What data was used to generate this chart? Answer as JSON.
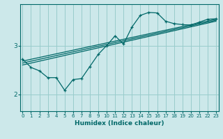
{
  "xlabel": "Humidex (Indice chaleur)",
  "ylabel": "",
  "bg_color": "#cce8ea",
  "line_color": "#006868",
  "grid_color": "#99cccc",
  "x_ticks": [
    0,
    1,
    2,
    3,
    4,
    5,
    6,
    7,
    8,
    9,
    10,
    11,
    12,
    13,
    14,
    15,
    16,
    17,
    18,
    19,
    20,
    21,
    22,
    23
  ],
  "y_ticks": [
    2,
    3
  ],
  "ylim": [
    1.65,
    3.85
  ],
  "xlim": [
    -0.3,
    23.3
  ],
  "wiggly_x": [
    0,
    1,
    2,
    3,
    4,
    5,
    6,
    7,
    8,
    9,
    10,
    11,
    12,
    13,
    14,
    15,
    16,
    17,
    18,
    19,
    20,
    21,
    22,
    23
  ],
  "wiggly_y": [
    2.72,
    2.55,
    2.48,
    2.34,
    2.34,
    2.08,
    2.3,
    2.32,
    2.57,
    2.82,
    3.0,
    3.2,
    3.03,
    3.38,
    3.62,
    3.68,
    3.67,
    3.5,
    3.45,
    3.43,
    3.42,
    3.48,
    3.54,
    3.55
  ],
  "trend1_x": [
    0,
    23
  ],
  "trend1_y": [
    2.68,
    3.54
  ],
  "trend2_x": [
    0,
    23
  ],
  "trend2_y": [
    2.6,
    3.5
  ],
  "trend3_x": [
    0,
    23
  ],
  "trend3_y": [
    2.64,
    3.52
  ]
}
